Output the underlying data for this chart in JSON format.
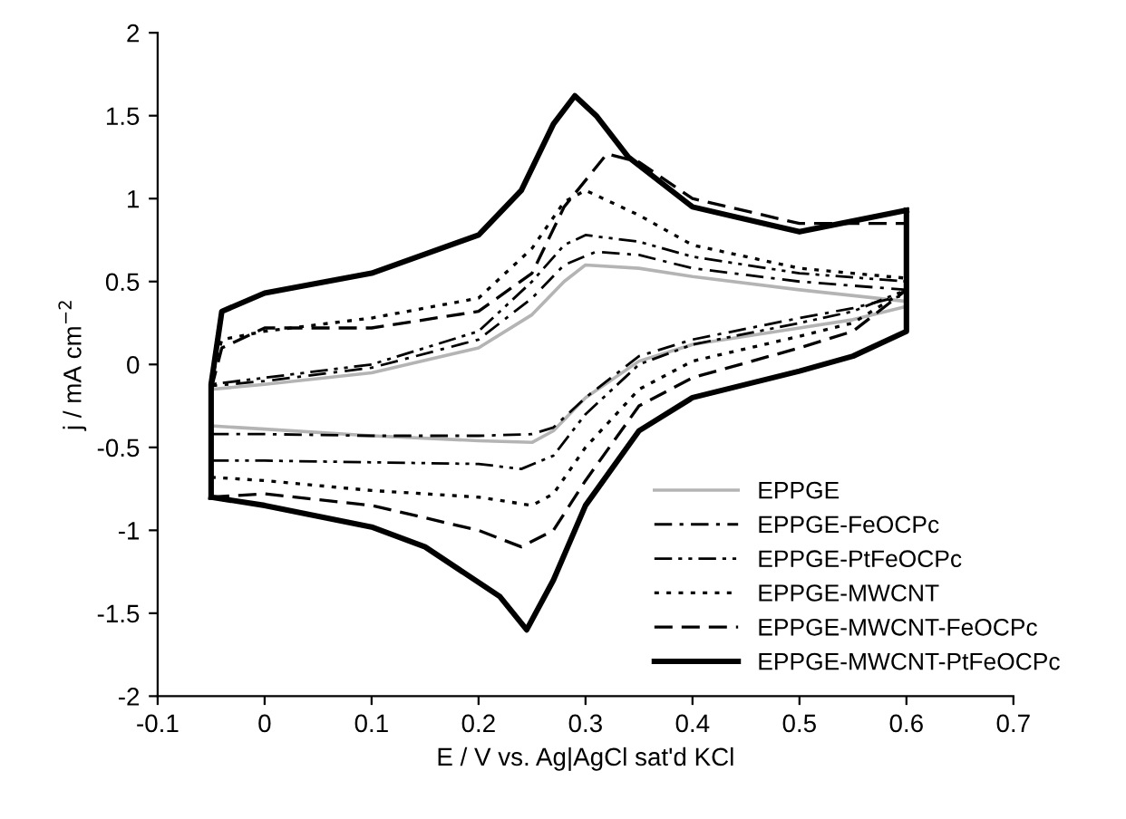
{
  "chart_data": {
    "type": "line",
    "xlabel": "E / V vs. Ag|AgCl sat'd KCl",
    "ylabel": "j / mA cm$^{−2}$",
    "xlim": [
      -0.1,
      0.7
    ],
    "xticks": [
      -0.1,
      0,
      0.1,
      0.2,
      0.3,
      0.4,
      0.5,
      0.6,
      0.7
    ],
    "ylim": [
      -2,
      2
    ],
    "yticks": [
      -2,
      -1.5,
      -1,
      -0.5,
      0,
      0.5,
      1,
      1.5,
      2
    ],
    "grid": false,
    "legend": "bottom right",
    "marker": "none",
    "series": [
      {
        "name": "EPPGE",
        "color": "#b4b4b4",
        "line_style": "solid",
        "x": [
          -0.05,
          -0.05,
          0,
          0.1,
          0.2,
          0.25,
          0.28,
          0.3,
          0.35,
          0.4,
          0.5,
          0.6
        ],
        "values": [
          -0.37,
          -0.15,
          -0.12,
          -0.05,
          0.1,
          0.3,
          0.5,
          0.6,
          0.58,
          0.53,
          0.45,
          0.38
        ]
      },
      {
        "color": "#b4b4b4",
        "line_style": "solid",
        "x": [
          -0.05,
          0,
          0.1,
          0.2,
          0.25,
          0.27,
          0.3,
          0.35,
          0.4,
          0.5,
          0.55,
          0.6,
          0.6
        ],
        "values": [
          -0.37,
          -0.39,
          -0.43,
          -0.46,
          -0.47,
          -0.4,
          -0.2,
          0.02,
          0.12,
          0.22,
          0.27,
          0.35,
          0.38
        ]
      },
      {
        "name": "EPPGE-FeOCPc",
        "color": "#000000",
        "line_style": "dashdot",
        "x": [
          -0.05,
          -0.05,
          0,
          0.1,
          0.2,
          0.25,
          0.28,
          0.31,
          0.35,
          0.4,
          0.5,
          0.6
        ],
        "values": [
          -0.42,
          -0.13,
          -0.1,
          -0.02,
          0.15,
          0.4,
          0.6,
          0.68,
          0.66,
          0.58,
          0.5,
          0.45
        ]
      },
      {
        "color": "#000000",
        "line_style": "dashdot",
        "x": [
          -0.05,
          0,
          0.1,
          0.2,
          0.25,
          0.27,
          0.3,
          0.35,
          0.4,
          0.5,
          0.55,
          0.6,
          0.6
        ],
        "values": [
          -0.42,
          -0.42,
          -0.43,
          -0.43,
          -0.42,
          -0.38,
          -0.2,
          0.05,
          0.15,
          0.28,
          0.34,
          0.42,
          0.45
        ]
      },
      {
        "name": "EPPGE-PtFeOCPc",
        "color": "#000000",
        "line_style": "dashdotdot",
        "x": [
          -0.05,
          -0.05,
          0,
          0.1,
          0.2,
          0.25,
          0.28,
          0.3,
          0.35,
          0.4,
          0.5,
          0.6
        ],
        "values": [
          -0.58,
          -0.12,
          -0.08,
          0,
          0.2,
          0.5,
          0.72,
          0.78,
          0.74,
          0.65,
          0.55,
          0.5
        ]
      },
      {
        "color": "#000000",
        "line_style": "dashdotdot",
        "x": [
          -0.05,
          0,
          0.1,
          0.2,
          0.24,
          0.27,
          0.3,
          0.35,
          0.4,
          0.5,
          0.55,
          0.6,
          0.6
        ],
        "values": [
          -0.58,
          -0.58,
          -0.59,
          -0.6,
          -0.63,
          -0.55,
          -0.3,
          0.0,
          0.12,
          0.25,
          0.32,
          0.45,
          0.5
        ]
      },
      {
        "name": "EPPGE-MWCNT",
        "color": "#000000",
        "line_style": "dotted",
        "x": [
          -0.05,
          -0.05,
          -0.04,
          0,
          0.1,
          0.2,
          0.25,
          0.28,
          0.3,
          0.35,
          0.4,
          0.5,
          0.6
        ],
        "values": [
          -0.68,
          -0.1,
          0.15,
          0.2,
          0.28,
          0.4,
          0.7,
          0.98,
          1.05,
          0.9,
          0.72,
          0.58,
          0.52
        ]
      },
      {
        "color": "#000000",
        "line_style": "dotted",
        "x": [
          -0.05,
          0,
          0.1,
          0.2,
          0.25,
          0.27,
          0.3,
          0.35,
          0.4,
          0.5,
          0.55,
          0.6,
          0.6
        ],
        "values": [
          -0.68,
          -0.7,
          -0.76,
          -0.8,
          -0.85,
          -0.78,
          -0.5,
          -0.15,
          0.02,
          0.17,
          0.25,
          0.45,
          0.52
        ]
      },
      {
        "name": "EPPGE-MWCNT-FeOCPc",
        "color": "#000000",
        "line_style": "dashed",
        "x": [
          -0.05,
          -0.05,
          -0.04,
          0,
          0.1,
          0.2,
          0.25,
          0.28,
          0.32,
          0.35,
          0.4,
          0.5,
          0.6
        ],
        "values": [
          -0.8,
          -0.15,
          0.1,
          0.22,
          0.22,
          0.32,
          0.55,
          0.95,
          1.27,
          1.22,
          1.0,
          0.85,
          0.85
        ]
      },
      {
        "color": "#000000",
        "line_style": "dashed",
        "x": [
          -0.05,
          0,
          0.1,
          0.2,
          0.24,
          0.27,
          0.3,
          0.35,
          0.4,
          0.5,
          0.55,
          0.6,
          0.6
        ],
        "values": [
          -0.8,
          -0.78,
          -0.85,
          -1.0,
          -1.1,
          -1.0,
          -0.7,
          -0.25,
          -0.08,
          0.1,
          0.2,
          0.45,
          0.85
        ]
      },
      {
        "name": "EPPGE-MWCNT-PtFeOCPc",
        "color": "#000000",
        "line_style": "solid",
        "x": [
          -0.05,
          -0.05,
          -0.04,
          0,
          0.1,
          0.2,
          0.24,
          0.27,
          0.29,
          0.31,
          0.34,
          0.4,
          0.5,
          0.6
        ],
        "values": [
          -0.8,
          -0.12,
          0.32,
          0.43,
          0.55,
          0.78,
          1.05,
          1.45,
          1.62,
          1.5,
          1.25,
          0.95,
          0.8,
          0.93
        ]
      },
      {
        "color": "#000000",
        "line_style": "solid",
        "x": [
          -0.05,
          0,
          0.1,
          0.15,
          0.22,
          0.245,
          0.27,
          0.3,
          0.35,
          0.4,
          0.5,
          0.55,
          0.6,
          0.6
        ],
        "values": [
          -0.8,
          -0.85,
          -0.98,
          -1.1,
          -1.4,
          -1.6,
          -1.3,
          -0.85,
          -0.4,
          -0.2,
          -0.04,
          0.05,
          0.2,
          0.93
        ]
      }
    ]
  }
}
